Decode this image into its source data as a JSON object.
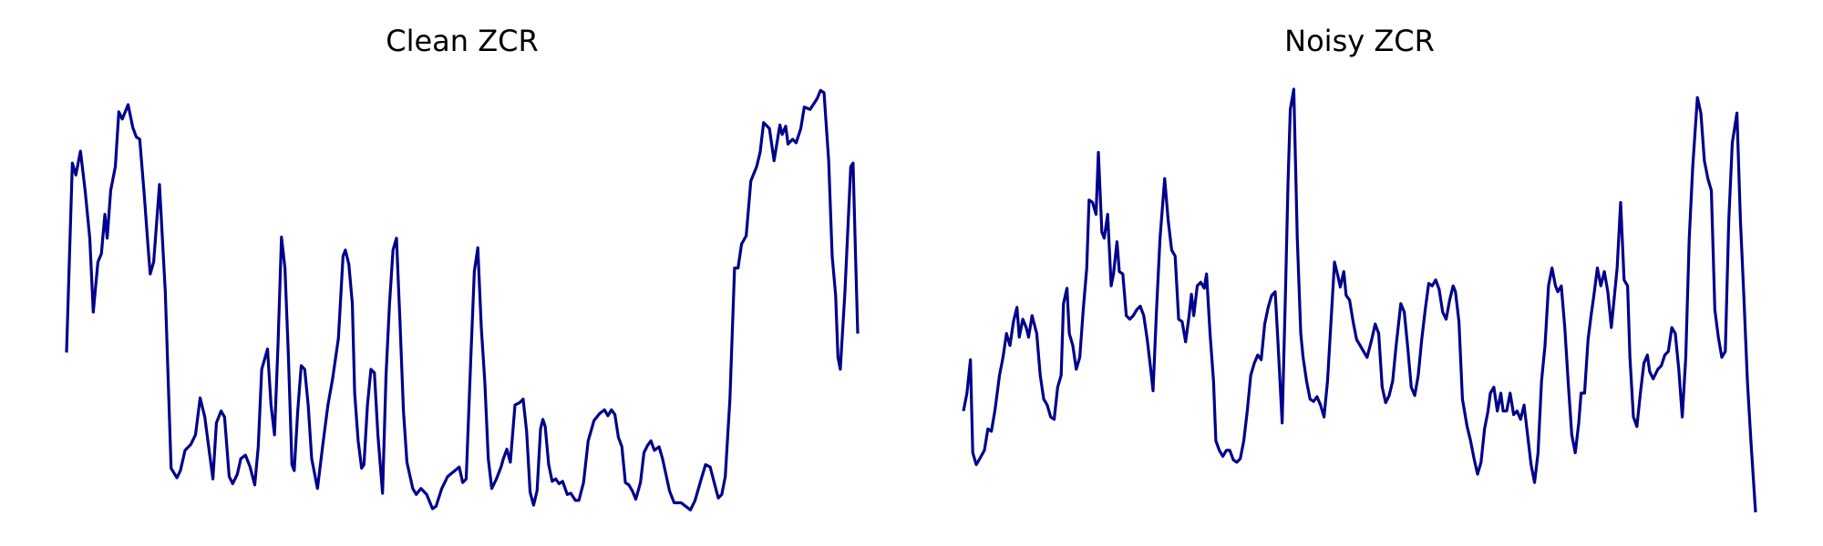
{
  "chart_data": [
    {
      "type": "line",
      "title": "Clean ZCR",
      "color": "#00008b",
      "xlim": [
        0,
        681
      ],
      "ylim": [
        0,
        355
      ],
      "x": [
        0,
        5,
        8,
        12,
        16,
        20,
        23,
        27,
        30,
        33,
        35,
        38,
        42,
        45,
        48,
        53,
        57,
        60,
        63,
        67,
        70,
        72,
        75,
        80,
        85,
        90,
        95,
        98,
        102,
        107,
        111,
        115,
        119,
        123,
        126,
        129,
        133,
        136,
        138,
        140,
        143,
        147,
        150,
        154,
        158,
        162,
        165,
        168,
        173,
        176,
        179,
        182,
        185,
        188,
        191,
        194,
        196,
        199,
        202,
        205,
        208,
        211,
        216,
        221,
        225,
        229,
        234,
        238,
        240,
        243,
        246,
        248,
        251,
        254,
        256,
        259,
        262,
        265,
        268,
        272,
        275,
        278,
        281,
        284,
        287,
        290,
        293,
        298,
        301,
        305,
        310,
        315,
        318,
        323,
        328,
        333,
        338,
        341,
        344,
        348,
        351,
        354,
        357,
        360,
        363,
        366,
        370,
        374,
        376,
        379,
        382,
        386,
        390,
        393,
        396,
        399,
        402,
        405,
        408,
        410,
        412,
        415,
        418,
        421,
        424,
        427,
        431,
        434,
        438,
        441,
        445,
        449,
        454,
        459,
        463,
        466,
        469,
        472,
        475,
        478,
        481,
        484,
        487,
        490,
        494,
        497,
        500,
        503,
        506,
        510,
        513,
        519,
        523,
        529,
        533,
        537,
        541,
        546,
        550,
        554,
        558,
        561,
        564,
        567,
        571,
        575,
        578,
        581,
        585,
        589,
        594,
        597,
        600,
        605,
        609,
        614,
        616,
        619,
        621,
        625,
        628,
        632,
        635,
        640,
        646,
        649,
        652,
        656,
        659,
        662,
        664,
        666,
        670,
        675,
        677,
        679,
        681
      ],
      "values": [
        134,
        293,
        283,
        303,
        270,
        230,
        168,
        210,
        217,
        250,
        230,
        270,
        290,
        336,
        330,
        342,
        323,
        315,
        313,
        265,
        225,
        200,
        210,
        275,
        185,
        37,
        29,
        35,
        52,
        57,
        65,
        96,
        80,
        50,
        28,
        75,
        85,
        80,
        55,
        30,
        24,
        32,
        45,
        48,
        38,
        23,
        55,
        120,
        137,
        90,
        65,
        140,
        231,
        205,
        130,
        40,
        35,
        85,
        123,
        120,
        90,
        45,
        20,
        60,
        90,
        112,
        146,
        215,
        220,
        208,
        175,
        100,
        60,
        37,
        40,
        90,
        120,
        117,
        65,
        16,
        115,
        175,
        220,
        230,
        160,
        85,
        42,
        20,
        15,
        20,
        15,
        3,
        5,
        20,
        30,
        34,
        38,
        25,
        28,
        130,
        202,
        222,
        155,
        110,
        45,
        20,
        28,
        38,
        45,
        53,
        42,
        90,
        92,
        95,
        68,
        17,
        6,
        18,
        70,
        78,
        72,
        40,
        26,
        28,
        24,
        26,
        15,
        16,
        10,
        10,
        25,
        60,
        77,
        83,
        86,
        81,
        86,
        82,
        63,
        55,
        25,
        23,
        18,
        11,
        25,
        50,
        56,
        60,
        52,
        55,
        45,
        18,
        8,
        8,
        5,
        2,
        10,
        27,
        40,
        38,
        23,
        12,
        15,
        30,
        95,
        205,
        205,
        225,
        232,
        278,
        290,
        302,
        327,
        322,
        295,
        325,
        317,
        324,
        309,
        313,
        310,
        322,
        340,
        338,
        347,
        354,
        352,
        295,
        215,
        182,
        130,
        120,
        185,
        290,
        293,
        220,
        150
      ]
    },
    {
      "type": "line",
      "title": "Noisy ZCR",
      "color": "#00008b",
      "xlim": [
        0,
        681
      ],
      "ylim": [
        0,
        355
      ],
      "x": [
        0,
        3,
        6,
        8,
        11,
        14,
        18,
        21,
        24,
        27,
        31,
        34,
        37,
        40,
        43,
        46,
        48,
        51,
        54,
        56,
        59,
        63,
        66,
        69,
        72,
        75,
        78,
        81,
        84,
        86,
        89,
        91,
        94,
        97,
        100,
        103,
        106,
        108,
        111,
        114,
        116,
        119,
        121,
        124,
        127,
        129,
        132,
        134,
        137,
        140,
        143,
        146,
        149,
        152,
        155,
        158,
        161,
        163,
        166,
        169,
        173,
        176,
        179,
        182,
        185,
        188,
        191,
        194,
        196,
        198,
        201,
        204,
        207,
        209,
        212,
        215,
        217,
        220,
        223,
        226,
        229,
        232,
        235,
        238,
        241,
        244,
        247,
        250,
        253,
        256,
        259,
        262,
        265,
        268,
        270,
        274,
        277,
        279,
        281,
        284,
        287,
        290,
        292,
        295,
        298,
        301,
        304,
        307,
        310,
        313,
        316,
        319,
        322,
        324,
        327,
        329,
        332,
        335,
        338,
        341,
        344,
        347,
        351,
        354,
        357,
        360,
        363,
        366,
        369,
        372,
        376,
        379,
        382,
        385,
        388,
        391,
        394,
        397,
        400,
        403,
        406,
        409,
        412,
        415,
        418,
        421,
        423,
        426,
        429,
        433,
        436,
        439,
        442,
        445,
        448,
        451,
        453,
        456,
        459,
        462,
        464,
        467,
        470,
        473,
        476,
        479,
        482,
        485,
        488,
        491,
        494,
        497,
        500,
        503,
        506,
        509,
        511,
        514,
        517,
        520,
        523,
        526,
        529,
        531,
        534,
        537,
        540,
        542,
        545,
        548,
        551,
        554,
        557,
        560,
        562,
        565,
        568,
        571,
        573,
        576,
        579,
        582,
        585,
        588,
        590,
        593,
        597,
        600,
        603,
        606,
        609,
        612,
        615,
        618,
        621,
        624,
        627,
        631,
        634,
        637,
        640,
        643,
        646,
        649,
        652,
        655,
        658,
        661,
        665,
        668,
        671,
        674,
        677,
        681
      ],
      "values": [
        85,
        100,
        128,
        50,
        40,
        45,
        52,
        70,
        68,
        85,
        115,
        130,
        150,
        140,
        160,
        172,
        147,
        162,
        155,
        147,
        165,
        150,
        115,
        95,
        90,
        80,
        78,
        105,
        115,
        175,
        188,
        150,
        140,
        120,
        130,
        170,
        205,
        262,
        260,
        250,
        302,
        235,
        230,
        250,
        190,
        200,
        227,
        202,
        200,
        165,
        162,
        165,
        170,
        173,
        165,
        145,
        120,
        102,
        170,
        230,
        280,
        245,
        220,
        215,
        162,
        160,
        143,
        165,
        183,
        165,
        190,
        193,
        188,
        200,
        150,
        110,
        60,
        52,
        47,
        52,
        52,
        44,
        42,
        45,
        60,
        85,
        115,
        125,
        132,
        128,
        158,
        172,
        182,
        185,
        150,
        75,
        190,
        275,
        338,
        355,
        230,
        150,
        130,
        110,
        95,
        93,
        97,
        90,
        80,
        110,
        160,
        210,
        198,
        189,
        202,
        182,
        178,
        160,
        145,
        140,
        135,
        130,
        145,
        158,
        150,
        105,
        92,
        98,
        110,
        140,
        175,
        168,
        138,
        105,
        98,
        115,
        145,
        170,
        192,
        190,
        195,
        187,
        168,
        162,
        178,
        190,
        185,
        160,
        95,
        72,
        60,
        45,
        32,
        42,
        70,
        85,
        100,
        105,
        85,
        100,
        85,
        85,
        100,
        82,
        85,
        78,
        90,
        65,
        40,
        25,
        50,
        110,
        140,
        190,
        205,
        190,
        185,
        190,
        155,
        108,
        65,
        50,
        75,
        100,
        100,
        145,
        168,
        182,
        205,
        190,
        202,
        185,
        155,
        185,
        205,
        260,
        195,
        190,
        130,
        80,
        72,
        100,
        125,
        132,
        118,
        112,
        120,
        123,
        132,
        135,
        155,
        150,
        120,
        80,
        130,
        230,
        290,
        348,
        335,
        295,
        280,
        270,
        170,
        147,
        130,
        135,
        245,
        310,
        335,
        245,
        180,
        110,
        60,
        0
      ]
    }
  ]
}
